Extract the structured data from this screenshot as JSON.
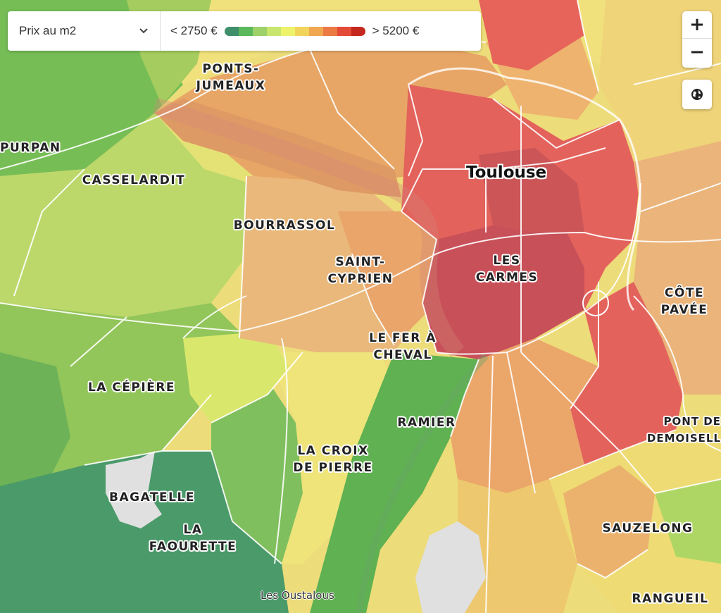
{
  "legend": {
    "metric_label": "Prix au m2",
    "min_label": "< 2750 €",
    "max_label": "> 5200 €",
    "scale_colors": [
      "#3f8f6b",
      "#5cb85c",
      "#9dd16a",
      "#c8e66e",
      "#eef26a",
      "#f2d45c",
      "#f0a850",
      "#ec7a45",
      "#e44a38",
      "#c4281f"
    ]
  },
  "controls": {
    "zoom_in": "+",
    "zoom_out": "−",
    "globe_icon": "globe-icon"
  },
  "city": {
    "name": "Toulouse"
  },
  "districts": [
    {
      "id": "ponts-jumeaux",
      "name": "PONTS-\nJUMEAUX"
    },
    {
      "id": "purpan",
      "name": "PURPAN"
    },
    {
      "id": "casselardit",
      "name": "CASSELARDIT"
    },
    {
      "id": "bourrassol",
      "name": "BOURRASSOL"
    },
    {
      "id": "saint-cyprien",
      "name": "SAINT-\nCYPRIEN"
    },
    {
      "id": "les-carmes",
      "name": "LES\nCARMES"
    },
    {
      "id": "cote-pavee",
      "name": "CÔTE\nPAVÉE"
    },
    {
      "id": "le-fer-a-cheval",
      "name": "LE FER À\nCHEVAL"
    },
    {
      "id": "la-cepiere",
      "name": "LA CÉPIÈRE"
    },
    {
      "id": "ramier",
      "name": "RAMIER"
    },
    {
      "id": "pont-des-demoiselles",
      "name": "PONT DE\nDEMOISELL"
    },
    {
      "id": "la-croix-de-pierre",
      "name": "LA CROIX\nDE PIERRE"
    },
    {
      "id": "bagatelle",
      "name": "BAGATELLE"
    },
    {
      "id": "la-faourette",
      "name": "LA\nFAOURETTE"
    },
    {
      "id": "sauzelong",
      "name": "SAUZELONG"
    },
    {
      "id": "rangueil",
      "name": "RANGUEIL"
    }
  ],
  "places": [
    {
      "id": "les-oustalous",
      "name": "Les Oustalous"
    }
  ]
}
